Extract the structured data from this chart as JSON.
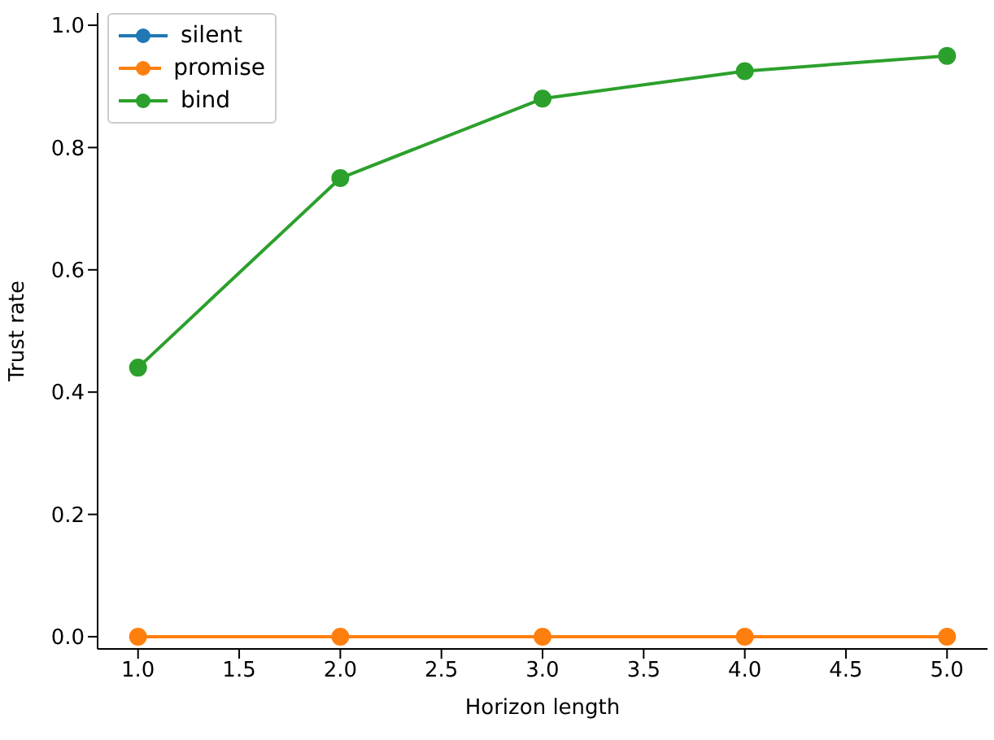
{
  "chart_data": {
    "type": "line",
    "xlabel": "Horizon length",
    "ylabel": "Trust rate",
    "x": [
      1,
      2,
      3,
      4,
      5
    ],
    "series": [
      {
        "name": "silent",
        "color": "#1f77b4",
        "values": [
          null,
          null,
          null,
          null,
          null
        ]
      },
      {
        "name": "promise",
        "color": "#ff7f0e",
        "values": [
          0,
          0,
          0,
          0,
          0
        ]
      },
      {
        "name": "bind",
        "color": "#2ca02c",
        "values": [
          0.44,
          0.75,
          0.88,
          0.925,
          0.95
        ]
      }
    ],
    "xlim": [
      0.8,
      5.2
    ],
    "xticks": [
      {
        "value": 1,
        "label": "1.0"
      },
      {
        "value": 1.5,
        "label": "1.5"
      },
      {
        "value": 2,
        "label": "2.0"
      },
      {
        "value": 2.5,
        "label": "2.5"
      },
      {
        "value": 3,
        "label": "3.0"
      },
      {
        "value": 3.5,
        "label": "3.5"
      },
      {
        "value": 4,
        "label": "4.0"
      },
      {
        "value": 4.5,
        "label": "4.5"
      },
      {
        "value": 5,
        "label": "5.0"
      }
    ],
    "ylim": [
      -0.02,
      1.02
    ],
    "yticks": [
      {
        "value": 0,
        "label": "0.0"
      },
      {
        "value": 0.2,
        "label": "0.2"
      },
      {
        "value": 0.4,
        "label": "0.4"
      },
      {
        "value": 0.6,
        "label": "0.6"
      },
      {
        "value": 0.8,
        "label": "0.8"
      },
      {
        "value": 1,
        "label": "1.0"
      }
    ],
    "grid": false,
    "legend": "top left",
    "marker": "circle",
    "line_style": "solid"
  }
}
